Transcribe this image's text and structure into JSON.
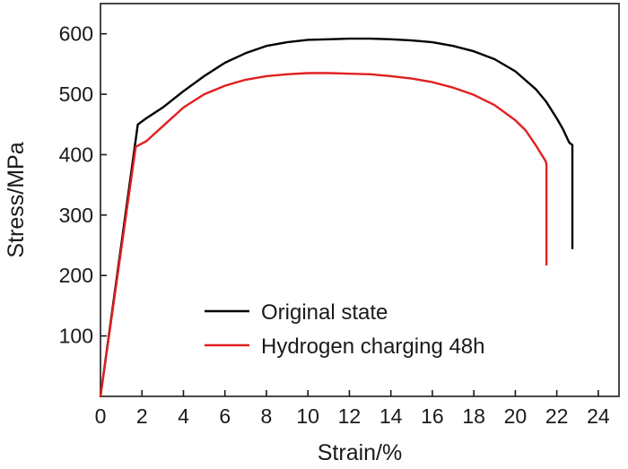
{
  "chart_data": {
    "type": "line",
    "xlabel": "Strain/%",
    "ylabel": "Stress/MPa",
    "xlim": [
      0,
      25
    ],
    "ylim": [
      0,
      650
    ],
    "xticks": [
      0,
      2,
      4,
      6,
      8,
      10,
      12,
      14,
      16,
      18,
      20,
      22,
      24
    ],
    "yticks": [
      100,
      200,
      300,
      400,
      500,
      600
    ],
    "grid": false,
    "legend_position": "lower-center",
    "series": [
      {
        "name": "Original state",
        "color": "#000000",
        "x": [
          0,
          1.8,
          2.2,
          3,
          4,
          5,
          6,
          7,
          8,
          9,
          10,
          11,
          12,
          13,
          14,
          15,
          16,
          17,
          18,
          19,
          20,
          21,
          21.5,
          22,
          22.3,
          22.6,
          22.75,
          22.75
        ],
        "y": [
          0,
          450,
          460,
          478,
          505,
          530,
          552,
          568,
          580,
          586,
          590,
          591,
          592,
          592,
          591,
          589,
          586,
          580,
          571,
          558,
          538,
          508,
          487,
          460,
          442,
          420,
          416,
          245
        ]
      },
      {
        "name": "Hydrogen charging 48h",
        "color": "#e0201f",
        "x": [
          0,
          1.7,
          2.2,
          3,
          4,
          5,
          6,
          7,
          8,
          9,
          10,
          11,
          12,
          13,
          14,
          15,
          16,
          17,
          18,
          19,
          20,
          20.5,
          21,
          21.3,
          21.45,
          21.5,
          21.5
        ],
        "y": [
          0,
          413,
          422,
          447,
          478,
          500,
          514,
          524,
          530,
          533,
          535,
          535,
          534,
          533,
          530,
          526,
          520,
          511,
          499,
          482,
          457,
          440,
          415,
          398,
          390,
          385,
          218
        ]
      }
    ]
  }
}
